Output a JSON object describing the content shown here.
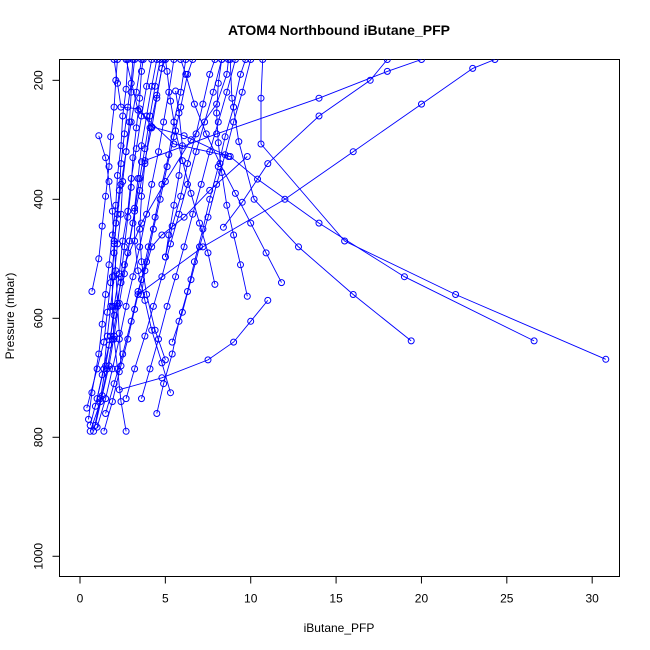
{
  "chart_data": {
    "type": "line",
    "title": "ATOM4 Northbound iButane_PFP",
    "xlabel": "iButane_PFP",
    "ylabel": "Pressure (mbar)",
    "xlim": [
      -1.2,
      31.6
    ],
    "ylim": [
      1034,
      165
    ],
    "y_reversed": true,
    "xticks": [
      0,
      5,
      10,
      15,
      20,
      25,
      30
    ],
    "yticks": [
      200,
      400,
      600,
      800,
      1000
    ],
    "series_color": "#0000ff",
    "marker": "open-circle",
    "grid": false,
    "legend": "none",
    "profiles": [
      [
        [
          0.4,
          751
        ],
        [
          1.0,
          685
        ],
        [
          1.4,
          640
        ],
        [
          1.6,
          590
        ],
        [
          1.8,
          540
        ],
        [
          2.0,
          490
        ],
        [
          2.1,
          440
        ],
        [
          2.3,
          385
        ],
        [
          2.4,
          340
        ],
        [
          2.6,
          290
        ],
        [
          2.8,
          245
        ],
        [
          3.0,
          205
        ],
        [
          3.1,
          165
        ]
      ],
      [
        [
          0.5,
          770
        ],
        [
          0.7,
          725
        ],
        [
          1.1,
          660
        ],
        [
          1.3,
          610
        ],
        [
          1.5,
          560
        ],
        [
          1.7,
          510
        ],
        [
          1.9,
          460
        ],
        [
          2.1,
          410
        ],
        [
          2.2,
          360
        ],
        [
          2.4,
          310
        ],
        [
          2.5,
          260
        ],
        [
          2.7,
          215
        ],
        [
          2.8,
          165
        ]
      ],
      [
        [
          0.6,
          790
        ],
        [
          1.2,
          740
        ],
        [
          1.6,
          685
        ],
        [
          1.9,
          635
        ],
        [
          2.2,
          580
        ],
        [
          2.4,
          530
        ],
        [
          2.6,
          480
        ],
        [
          2.8,
          430
        ],
        [
          3.0,
          380
        ],
        [
          3.1,
          330
        ],
        [
          3.3,
          280
        ],
        [
          3.5,
          230
        ],
        [
          3.6,
          185
        ],
        [
          3.7,
          165
        ]
      ],
      [
        [
          0.6,
          780
        ],
        [
          1.0,
          735
        ],
        [
          1.4,
          685
        ],
        [
          1.6,
          630
        ],
        [
          1.8,
          580
        ],
        [
          2.0,
          530
        ],
        [
          2.2,
          475
        ],
        [
          2.4,
          425
        ],
        [
          2.5,
          370
        ],
        [
          2.7,
          320
        ],
        [
          2.9,
          270
        ],
        [
          3.0,
          220
        ],
        [
          3.2,
          165
        ]
      ],
      [
        [
          0.8,
          790
        ],
        [
          1.2,
          735
        ],
        [
          1.5,
          680
        ],
        [
          1.8,
          630
        ],
        [
          2.0,
          580
        ],
        [
          2.3,
          525
        ],
        [
          2.5,
          470
        ],
        [
          2.8,
          420
        ],
        [
          3.0,
          365
        ],
        [
          3.3,
          315
        ],
        [
          3.6,
          260
        ],
        [
          3.9,
          210
        ],
        [
          4.2,
          165
        ]
      ],
      [
        [
          0.7,
          555
        ],
        [
          1.1,
          500
        ],
        [
          1.3,
          445
        ],
        [
          1.5,
          395
        ],
        [
          1.7,
          345
        ],
        [
          1.8,
          295
        ],
        [
          2.0,
          245
        ],
        [
          2.1,
          200
        ],
        [
          2.2,
          165
        ]
      ],
      [
        [
          1.1,
          293
        ],
        [
          1.5,
          330
        ],
        [
          1.7,
          370
        ],
        [
          1.9,
          420
        ],
        [
          2.0,
          470
        ],
        [
          2.1,
          520
        ],
        [
          2.2,
          575
        ],
        [
          2.3,
          625
        ],
        [
          2.4,
          680
        ]
      ],
      [
        [
          0.9,
          780
        ],
        [
          1.3,
          730
        ],
        [
          1.7,
          680
        ],
        [
          2.0,
          630
        ],
        [
          2.3,
          575
        ],
        [
          2.6,
          525
        ],
        [
          2.9,
          470
        ],
        [
          3.2,
          420
        ],
        [
          3.5,
          365
        ],
        [
          3.8,
          315
        ],
        [
          4.1,
          260
        ],
        [
          4.4,
          210
        ],
        [
          4.7,
          165
        ]
      ],
      [
        [
          1.0,
          783
        ],
        [
          1.5,
          735
        ],
        [
          1.9,
          685
        ],
        [
          2.3,
          635
        ],
        [
          2.7,
          580
        ],
        [
          3.1,
          530
        ],
        [
          3.5,
          480
        ],
        [
          3.9,
          425
        ],
        [
          4.2,
          375
        ],
        [
          4.6,
          320
        ],
        [
          4.9,
          270
        ],
        [
          5.2,
          220
        ],
        [
          5.5,
          165
        ]
      ],
      [
        [
          0.9,
          748
        ],
        [
          1.3,
          695
        ],
        [
          1.7,
          645
        ],
        [
          2.0,
          595
        ],
        [
          2.4,
          540
        ],
        [
          2.8,
          490
        ],
        [
          3.1,
          440
        ],
        [
          3.5,
          385
        ],
        [
          3.8,
          335
        ],
        [
          4.2,
          280
        ],
        [
          4.5,
          230
        ],
        [
          4.8,
          180
        ],
        [
          5.0,
          165
        ]
      ],
      [
        [
          1.4,
          790
        ],
        [
          1.9,
          740
        ],
        [
          2.3,
          690
        ],
        [
          2.8,
          635
        ],
        [
          3.2,
          585
        ],
        [
          3.6,
          535
        ],
        [
          4.0,
          480
        ],
        [
          4.4,
          430
        ],
        [
          4.8,
          375
        ],
        [
          5.2,
          325
        ],
        [
          5.5,
          270
        ],
        [
          5.9,
          220
        ],
        [
          6.2,
          165
        ]
      ],
      [
        [
          1.5,
          760
        ],
        [
          2.0,
          710
        ],
        [
          2.5,
          660
        ],
        [
          3.0,
          605
        ],
        [
          3.4,
          555
        ],
        [
          3.9,
          505
        ],
        [
          4.3,
          450
        ],
        [
          4.7,
          400
        ],
        [
          5.1,
          345
        ],
        [
          5.5,
          295
        ],
        [
          5.9,
          245
        ],
        [
          6.3,
          190
        ],
        [
          6.6,
          165
        ]
      ],
      [
        [
          2.7,
          790
        ],
        [
          2.4,
          740
        ],
        [
          2.2,
          685
        ],
        [
          2.0,
          635
        ],
        [
          1.9,
          580
        ],
        [
          1.9,
          530
        ],
        [
          2.0,
          475
        ],
        [
          2.2,
          425
        ],
        [
          2.4,
          375
        ],
        [
          2.7,
          320
        ],
        [
          3.0,
          270
        ],
        [
          3.3,
          220
        ],
        [
          3.6,
          165
        ]
      ],
      [
        [
          2.7,
          735
        ],
        [
          3.2,
          685
        ],
        [
          3.8,
          630
        ],
        [
          4.3,
          580
        ],
        [
          4.8,
          530
        ],
        [
          5.3,
          475
        ],
        [
          5.8,
          425
        ],
        [
          6.3,
          375
        ],
        [
          6.8,
          320
        ],
        [
          7.3,
          270
        ],
        [
          7.8,
          220
        ],
        [
          8.3,
          165
        ]
      ],
      [
        [
          3.6,
          735
        ],
        [
          4.1,
          685
        ],
        [
          4.6,
          635
        ],
        [
          5.1,
          580
        ],
        [
          5.6,
          530
        ],
        [
          6.1,
          480
        ],
        [
          6.6,
          425
        ],
        [
          7.1,
          375
        ],
        [
          7.6,
          320
        ],
        [
          8.1,
          270
        ],
        [
          8.6,
          220
        ],
        [
          9.1,
          165
        ]
      ],
      [
        [
          4.5,
          760
        ],
        [
          4.9,
          710
        ],
        [
          5.4,
          660
        ],
        [
          5.8,
          605
        ],
        [
          6.3,
          555
        ],
        [
          6.7,
          505
        ],
        [
          7.2,
          450
        ],
        [
          7.6,
          400
        ],
        [
          8.1,
          345
        ],
        [
          8.5,
          295
        ],
        [
          9.0,
          245
        ],
        [
          9.4,
          190
        ],
        [
          9.7,
          165
        ]
      ],
      [
        [
          5.3,
          725
        ],
        [
          4.8,
          675
        ],
        [
          4.2,
          620
        ],
        [
          3.8,
          570
        ],
        [
          3.4,
          520
        ],
        [
          3.2,
          470
        ],
        [
          3.2,
          415
        ],
        [
          3.4,
          365
        ],
        [
          3.6,
          310
        ],
        [
          3.9,
          260
        ],
        [
          4.2,
          210
        ],
        [
          4.5,
          165
        ]
      ],
      [
        [
          5.0,
          670
        ],
        [
          4.4,
          620
        ],
        [
          3.9,
          560
        ],
        [
          3.6,
          505
        ],
        [
          3.5,
          450
        ],
        [
          3.6,
          395
        ],
        [
          3.8,
          340
        ],
        [
          4.1,
          280
        ],
        [
          4.5,
          225
        ],
        [
          4.9,
          165
        ]
      ],
      [
        [
          5.4,
          640
        ],
        [
          6.0,
          590
        ],
        [
          6.5,
          535
        ],
        [
          7.0,
          480
        ],
        [
          7.5,
          430
        ],
        [
          8.0,
          375
        ],
        [
          8.5,
          325
        ],
        [
          9.0,
          270
        ],
        [
          9.5,
          220
        ],
        [
          10.0,
          165
        ]
      ],
      [
        [
          5.0,
          497
        ],
        [
          5.4,
          445
        ],
        [
          5.9,
          395
        ],
        [
          6.3,
          340
        ],
        [
          6.8,
          290
        ],
        [
          7.2,
          240
        ],
        [
          7.6,
          190
        ],
        [
          7.9,
          165
        ]
      ],
      [
        [
          7.9,
          543
        ],
        [
          7.5,
          490
        ],
        [
          7.0,
          440
        ],
        [
          6.5,
          390
        ],
        [
          6.0,
          335
        ],
        [
          5.6,
          285
        ],
        [
          5.3,
          235
        ],
        [
          5.1,
          185
        ],
        [
          5.0,
          165
        ]
      ],
      [
        [
          9.8,
          563
        ],
        [
          9.4,
          510
        ],
        [
          9.0,
          460
        ],
        [
          8.6,
          410
        ],
        [
          8.3,
          355
        ],
        [
          8.1,
          305
        ],
        [
          8.0,
          255
        ],
        [
          8.1,
          205
        ],
        [
          8.3,
          165
        ]
      ],
      [
        [
          11.8,
          540
        ],
        [
          10.9,
          490
        ],
        [
          10.0,
          440
        ],
        [
          9.1,
          390
        ],
        [
          8.2,
          340
        ],
        [
          7.4,
          290
        ],
        [
          6.7,
          240
        ],
        [
          6.2,
          190
        ],
        [
          5.9,
          165
        ]
      ],
      [
        [
          19.4,
          638
        ],
        [
          16.0,
          560
        ],
        [
          12.8,
          480
        ],
        [
          10.2,
          400
        ],
        [
          9.3,
          303
        ],
        [
          8.9,
          230
        ],
        [
          8.8,
          165
        ]
      ],
      [
        [
          26.6,
          638
        ],
        [
          19.0,
          530
        ],
        [
          14.0,
          440
        ],
        [
          10.4,
          366
        ],
        [
          8.8,
          328
        ],
        [
          5.5,
          307
        ],
        [
          3.4,
          250
        ],
        [
          2.7,
          165
        ]
      ],
      [
        [
          30.8,
          669
        ],
        [
          22.0,
          560
        ],
        [
          15.5,
          470
        ],
        [
          10.6,
          307
        ],
        [
          10.6,
          230
        ],
        [
          10.7,
          165
        ]
      ],
      [
        [
          8.4,
          447
        ],
        [
          9.5,
          405
        ],
        [
          11.0,
          340
        ],
        [
          14.0,
          260
        ],
        [
          17.0,
          200
        ],
        [
          18.0,
          165
        ]
      ],
      [
        [
          8.7,
          328
        ],
        [
          6.1,
          293
        ],
        [
          4.2,
          278
        ],
        [
          3.5,
          248
        ],
        [
          2.4,
          245
        ],
        [
          2.2,
          205
        ],
        [
          2.0,
          165
        ]
      ],
      [
        [
          9.8,
          328
        ],
        [
          7.6,
          385
        ],
        [
          6.1,
          430
        ],
        [
          4.8,
          460
        ],
        [
          4.2,
          480
        ],
        [
          3.8,
          520
        ],
        [
          3.6,
          560
        ]
      ],
      [
        [
          5.6,
          218
        ],
        [
          5.8,
          255
        ],
        [
          6.0,
          310
        ],
        [
          5.8,
          360
        ],
        [
          5.5,
          410
        ],
        [
          5.2,
          460
        ],
        [
          5.0,
          497
        ]
      ],
      [
        [
          3.6,
          337
        ],
        [
          8.0,
          290
        ],
        [
          14.0,
          230
        ],
        [
          18.0,
          185
        ],
        [
          20.0,
          165
        ]
      ],
      [
        [
          3.4,
          560
        ],
        [
          7.2,
          480
        ],
        [
          12.0,
          400
        ],
        [
          16.0,
          320
        ],
        [
          20.0,
          240
        ],
        [
          23.0,
          180
        ],
        [
          24.3,
          165
        ]
      ],
      [
        [
          2.3,
          720
        ],
        [
          4.8,
          700
        ],
        [
          7.5,
          670
        ],
        [
          9.0,
          640
        ],
        [
          10.0,
          605
        ],
        [
          11.0,
          570
        ]
      ],
      [
        [
          2.6,
          510
        ],
        [
          3.6,
          440
        ],
        [
          5.0,
          370
        ],
        [
          6.5,
          300
        ],
        [
          8.0,
          240
        ],
        [
          8.6,
          190
        ],
        [
          8.7,
          165
        ]
      ]
    ]
  }
}
